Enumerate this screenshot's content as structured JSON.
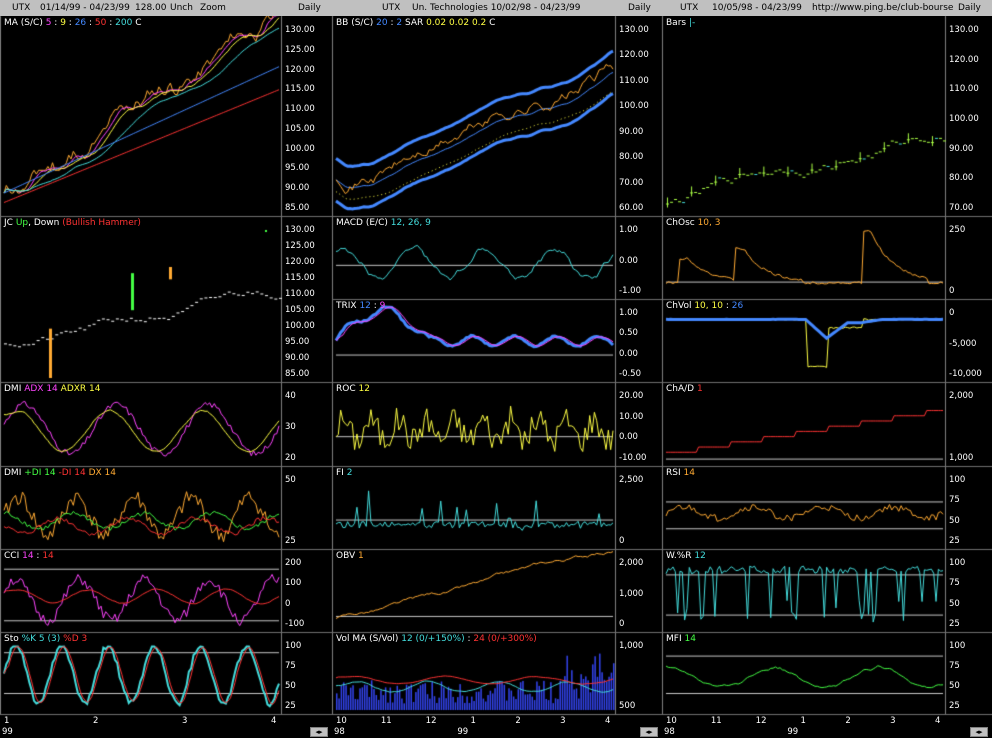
{
  "columns": [
    {
      "header": {
        "symbol": "UTX",
        "range": "01/14/99 - 04/23/99",
        "value": "128.00",
        "change": "Unch",
        "zoom": "Zoom",
        "period": "Daily"
      },
      "panels": [
        {
          "id": "ma",
          "legend": [
            {
              "t": "MA (S/C)",
              "c": "#ffffff"
            },
            {
              "t": " 5",
              "c": "#ff44ff"
            },
            {
              "t": " : ",
              "c": "#ffffff"
            },
            {
              "t": "9",
              "c": "#ffff44"
            },
            {
              "t": " : ",
              "c": "#ffffff"
            },
            {
              "t": "26",
              "c": "#4488ff"
            },
            {
              "t": " : ",
              "c": "#ffffff"
            },
            {
              "t": "50",
              "c": "#ff3333"
            },
            {
              "t": " : ",
              "c": "#ffffff"
            },
            {
              "t": "200",
              "c": "#44dddd"
            },
            {
              "t": "   C ",
              "c": "#ffffff"
            }
          ],
          "ticks": [
            "130.00",
            "125.00",
            "120.00",
            "115.00",
            "110.00",
            "105.00",
            "100.00",
            "95.00",
            "90.00",
            "85.00"
          ]
        },
        {
          "id": "jc",
          "legend": [
            {
              "t": "JC ",
              "c": "#ffffff"
            },
            {
              "t": "Up",
              "c": "#44ff44"
            },
            {
              "t": ", ",
              "c": "#ffffff"
            },
            {
              "t": "Down",
              "c": "#ffffff"
            },
            {
              "t": " (Bullish Hammer)",
              "c": "#ff3333"
            }
          ],
          "ticks": [
            "130.00",
            "125.00",
            "120.00",
            "115.00",
            "110.00",
            "105.00",
            "100.00",
            "95.00",
            "90.00",
            "85.00"
          ]
        },
        {
          "id": "dmi1",
          "legend": [
            {
              "t": "DMI ",
              "c": "#ffffff"
            },
            {
              "t": "ADX 14",
              "c": "#ff44ff"
            },
            {
              "t": "  ",
              "c": "#ffffff"
            },
            {
              "t": "ADXR 14",
              "c": "#ffff44"
            }
          ],
          "ticks": [
            "40",
            "30",
            "20"
          ]
        },
        {
          "id": "dmi2",
          "legend": [
            {
              "t": "DMI ",
              "c": "#ffffff"
            },
            {
              "t": "+DI 14",
              "c": "#44ff44"
            },
            {
              "t": "  ",
              "c": "#ffffff"
            },
            {
              "t": "-DI 14",
              "c": "#ff3333"
            },
            {
              "t": "  ",
              "c": "#ffffff"
            },
            {
              "t": "DX 14",
              "c": "#ffaa33"
            }
          ],
          "ticks": [
            "50",
            "25"
          ]
        },
        {
          "id": "cci",
          "legend": [
            {
              "t": "CCI ",
              "c": "#ffffff"
            },
            {
              "t": "14",
              "c": "#ff44ff"
            },
            {
              "t": " : ",
              "c": "#ffffff"
            },
            {
              "t": "14",
              "c": "#ff3333"
            }
          ],
          "ticks": [
            "200",
            "100",
            "0",
            "-100"
          ]
        },
        {
          "id": "sto",
          "legend": [
            {
              "t": "Sto ",
              "c": "#ffffff"
            },
            {
              "t": "%K 5 (3)",
              "c": "#44dddd"
            },
            {
              "t": "  ",
              "c": "#ffffff"
            },
            {
              "t": "%D 3",
              "c": "#ff3333"
            }
          ],
          "ticks": [
            "100",
            "75",
            "50",
            "25"
          ]
        }
      ],
      "xaxis": [
        "1",
        "2",
        "3",
        "4"
      ],
      "year": "99"
    },
    {
      "header": {
        "symbol": "UTX",
        "range": "Un. Technologies  10/02/98 - 04/23/99",
        "period": "Daily"
      },
      "panels": [
        {
          "id": "bb",
          "legend": [
            {
              "t": "BB (S/C) ",
              "c": "#ffffff"
            },
            {
              "t": "20",
              "c": "#4488ff"
            },
            {
              "t": " : ",
              "c": "#ffffff"
            },
            {
              "t": "2",
              "c": "#4488ff"
            },
            {
              "t": "   SAR  ",
              "c": "#ffffff"
            },
            {
              "t": "0.02",
              "c": "#ffff44"
            },
            {
              "t": "  ",
              "c": "#ffffff"
            },
            {
              "t": "0.02",
              "c": "#ffff44"
            },
            {
              "t": "  ",
              "c": "#ffffff"
            },
            {
              "t": "0.2",
              "c": "#ffff44"
            },
            {
              "t": "     C ",
              "c": "#ffffff"
            }
          ],
          "ticks": [
            "130.00",
            "120.00",
            "110.00",
            "100.00",
            "90.00",
            "80.00",
            "70.00",
            "60.00"
          ]
        },
        {
          "id": "macd",
          "legend": [
            {
              "t": "MACD (E/C) ",
              "c": "#ffffff"
            },
            {
              "t": "12, 26, 9",
              "c": "#44dddd"
            }
          ],
          "ticks": [
            "1.00",
            "0.00",
            "-1.00"
          ]
        },
        {
          "id": "trix",
          "legend": [
            {
              "t": "TRIX ",
              "c": "#ffffff"
            },
            {
              "t": "12",
              "c": "#4488ff"
            },
            {
              "t": " : ",
              "c": "#ffffff"
            },
            {
              "t": "9",
              "c": "#ff44ff"
            }
          ],
          "ticks": [
            "1.00",
            "0.50",
            "0.00",
            "-0.50"
          ]
        },
        {
          "id": "roc",
          "legend": [
            {
              "t": "ROC ",
              "c": "#ffffff"
            },
            {
              "t": "12",
              "c": "#ffff44"
            }
          ],
          "ticks": [
            "20.00",
            "10.00",
            "0.00",
            "-10.00"
          ]
        },
        {
          "id": "fi",
          "legend": [
            {
              "t": "FI ",
              "c": "#ffffff"
            },
            {
              "t": "2",
              "c": "#44dddd"
            }
          ],
          "ticks": [
            "2,500",
            "0"
          ]
        },
        {
          "id": "obv",
          "legend": [
            {
              "t": "OBV ",
              "c": "#ffffff"
            },
            {
              "t": "1",
              "c": "#ffaa33"
            }
          ],
          "ticks": [
            "2,000",
            "1,000",
            "0"
          ]
        },
        {
          "id": "vol",
          "legend": [
            {
              "t": "Vol ",
              "c": "#ffffff"
            },
            {
              "t": "  MA (S/Vol) ",
              "c": "#ffffff"
            },
            {
              "t": "12 (0/+150%)",
              "c": "#44dddd"
            },
            {
              "t": " : ",
              "c": "#ffffff"
            },
            {
              "t": "24 (0/+300%)",
              "c": "#ff3333"
            }
          ],
          "ticks": [
            "1,000",
            "500"
          ]
        }
      ],
      "xaxis": [
        "10",
        "11",
        "12",
        "1",
        "2",
        "3",
        "4"
      ],
      "year_left": "98",
      "year": "99"
    },
    {
      "header": {
        "symbol": "UTX",
        "range": "10/05/98 - 04/23/99",
        "url": "http://www.ping.be/club-bourse",
        "period": "Daily"
      },
      "panels": [
        {
          "id": "bars",
          "legend": [
            {
              "t": "Bars ",
              "c": "#ffffff"
            },
            {
              "t": " |-",
              "c": "#44dddd"
            }
          ],
          "ticks": [
            "130.00",
            "120.00",
            "110.00",
            "100.00",
            "90.00",
            "80.00",
            "70.00"
          ]
        },
        {
          "id": "chosc",
          "legend": [
            {
              "t": "ChOsc ",
              "c": "#ffffff"
            },
            {
              "t": "10, 3",
              "c": "#ffaa33"
            }
          ],
          "ticks": [
            "250",
            "0"
          ]
        },
        {
          "id": "chvol",
          "legend": [
            {
              "t": "ChVol ",
              "c": "#ffffff"
            },
            {
              "t": "10, 10",
              "c": "#ffff44"
            },
            {
              "t": " : ",
              "c": "#ffffff"
            },
            {
              "t": "26",
              "c": "#4488ff"
            }
          ],
          "ticks": [
            "0",
            "-5,000",
            "-10,000"
          ]
        },
        {
          "id": "chad",
          "legend": [
            {
              "t": "ChA/D ",
              "c": "#ffffff"
            },
            {
              "t": "1",
              "c": "#ff3333"
            }
          ],
          "ticks": [
            "2,000",
            "1,000"
          ]
        },
        {
          "id": "rsi",
          "legend": [
            {
              "t": "RSI ",
              "c": "#ffffff"
            },
            {
              "t": "14",
              "c": "#ffaa33"
            }
          ],
          "ticks": [
            "100",
            "75",
            "50",
            "25"
          ]
        },
        {
          "id": "wr",
          "legend": [
            {
              "t": "W.%R ",
              "c": "#ffffff"
            },
            {
              "t": "12",
              "c": "#44dddd"
            }
          ],
          "ticks": [
            "100",
            "75",
            "50",
            "25"
          ]
        },
        {
          "id": "mfi",
          "legend": [
            {
              "t": "MFI ",
              "c": "#ffffff"
            },
            {
              "t": "14",
              "c": "#44ff44"
            }
          ],
          "ticks": [
            "100",
            "75",
            "50",
            "25"
          ]
        }
      ],
      "xaxis": [
        "10",
        "11",
        "12",
        "1",
        "2",
        "3",
        "4"
      ],
      "year_left": "98",
      "year": "99"
    }
  ]
}
